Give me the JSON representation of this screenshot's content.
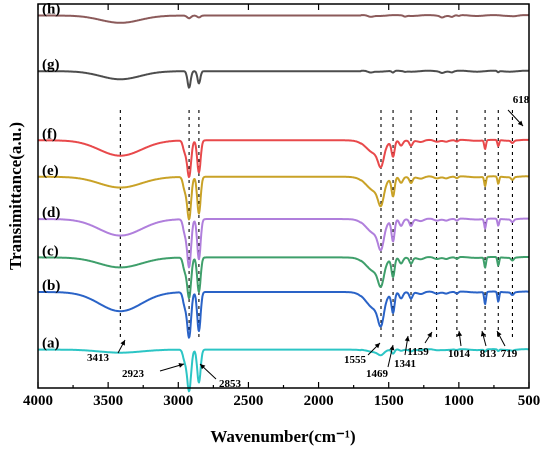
{
  "chart_data": {
    "type": "line",
    "xlabel": "Wavenumber(cm⁻¹)",
    "ylabel": "Transimittance(a.u.)",
    "xlim": [
      4000,
      500
    ],
    "x_reversed": true,
    "x_ticks": [
      "4000",
      "3500",
      "3000",
      "2500",
      "2000",
      "1500",
      "1000",
      "500"
    ],
    "y_ticks_shown": false,
    "grid": false,
    "series": [
      {
        "name": "(h)",
        "color": "#8b5a5a",
        "offset": 97.0,
        "depth": 4.2,
        "peaks": [
          [
            3413,
            1.9,
            140
          ],
          [
            2923,
            0.7,
            14
          ],
          [
            2853,
            0.5,
            12
          ],
          [
            1630,
            0.35,
            18
          ],
          [
            1384,
            0.25,
            10
          ],
          [
            1120,
            0.4,
            14
          ],
          [
            1050,
            0.35,
            12
          ],
          [
            1000,
            0.2,
            10
          ],
          [
            600,
            0.1,
            20
          ]
        ]
      },
      {
        "name": "(g)",
        "color": "#4d4d4d",
        "offset": 82.5,
        "depth": 4.8,
        "peaks": [
          [
            3413,
            2.1,
            140
          ],
          [
            2923,
            4.3,
            11
          ],
          [
            2853,
            3.2,
            10
          ],
          [
            1630,
            0.35,
            18
          ],
          [
            1470,
            0.45,
            9
          ],
          [
            1384,
            0.15,
            9
          ],
          [
            1120,
            0.35,
            14
          ],
          [
            1050,
            0.3,
            12
          ],
          [
            720,
            0.35,
            6
          ]
        ]
      },
      {
        "name": "(f)",
        "color": "#e8494b",
        "offset": 64.5,
        "depth": 9.5,
        "peaks": [
          [
            3413,
            4.0,
            150
          ],
          [
            2955,
            2.6,
            12
          ],
          [
            2923,
            9.5,
            14
          ],
          [
            2853,
            8.4,
            12
          ],
          [
            1600,
            3.3,
            60
          ],
          [
            1555,
            4.4,
            20
          ],
          [
            1469,
            4.1,
            11
          ],
          [
            1412,
            1.4,
            13
          ],
          [
            1341,
            1.3,
            11
          ],
          [
            1270,
            0.45,
            22
          ],
          [
            1159,
            0.35,
            18
          ],
          [
            1090,
            0.25,
            14
          ],
          [
            1014,
            0.4,
            10
          ],
          [
            813,
            2.3,
            6
          ],
          [
            719,
            1.6,
            6
          ],
          [
            618,
            0.6,
            9
          ]
        ]
      },
      {
        "name": "(e)",
        "color": "#c9a227",
        "offset": 55.0,
        "depth": 11.0,
        "peaks": [
          [
            3413,
            2.8,
            150
          ],
          [
            2955,
            3.0,
            12
          ],
          [
            2923,
            11.0,
            14
          ],
          [
            2853,
            9.6,
            12
          ],
          [
            1600,
            3.6,
            60
          ],
          [
            1555,
            4.8,
            20
          ],
          [
            1469,
            4.9,
            11
          ],
          [
            1412,
            1.6,
            13
          ],
          [
            1341,
            1.5,
            11
          ],
          [
            1270,
            0.5,
            22
          ],
          [
            1159,
            0.4,
            18
          ],
          [
            1090,
            0.3,
            14
          ],
          [
            1014,
            0.45,
            10
          ],
          [
            813,
            2.5,
            6
          ],
          [
            719,
            1.9,
            6
          ],
          [
            618,
            0.7,
            9
          ]
        ]
      },
      {
        "name": "(d)",
        "color": "#b07fdc",
        "offset": 44.0,
        "depth": 12.5,
        "peaks": [
          [
            3413,
            4.3,
            150
          ],
          [
            2955,
            3.2,
            12
          ],
          [
            2923,
            12.5,
            14
          ],
          [
            2853,
            10.5,
            12
          ],
          [
            1600,
            3.7,
            60
          ],
          [
            1555,
            5.2,
            20
          ],
          [
            1469,
            5.6,
            11
          ],
          [
            1412,
            1.8,
            13
          ],
          [
            1341,
            1.7,
            11
          ],
          [
            1270,
            0.55,
            22
          ],
          [
            1159,
            0.4,
            18
          ],
          [
            1090,
            0.3,
            14
          ],
          [
            1014,
            0.5,
            10
          ],
          [
            813,
            2.5,
            6
          ],
          [
            719,
            1.8,
            6
          ],
          [
            618,
            0.7,
            9
          ]
        ]
      },
      {
        "name": "(c)",
        "color": "#3f9f6b",
        "offset": 34.0,
        "depth": 10.5,
        "peaks": [
          [
            3413,
            2.6,
            150
          ],
          [
            2955,
            3.0,
            12
          ],
          [
            2923,
            10.5,
            14
          ],
          [
            2853,
            9.0,
            12
          ],
          [
            1600,
            3.6,
            60
          ],
          [
            1555,
            4.8,
            20
          ],
          [
            1469,
            4.9,
            11
          ],
          [
            1412,
            1.6,
            13
          ],
          [
            1341,
            1.5,
            11
          ],
          [
            1270,
            0.5,
            22
          ],
          [
            1159,
            0.4,
            18
          ],
          [
            1090,
            0.3,
            14
          ],
          [
            1014,
            0.45,
            10
          ],
          [
            813,
            2.7,
            6
          ],
          [
            719,
            2.2,
            6
          ],
          [
            618,
            0.7,
            9
          ]
        ]
      },
      {
        "name": "(b)",
        "color": "#2a63c7",
        "offset": 25.0,
        "depth": 11.8,
        "peaks": [
          [
            3413,
            5.0,
            150
          ],
          [
            2955,
            3.2,
            12
          ],
          [
            2923,
            11.8,
            14
          ],
          [
            2853,
            10.2,
            12
          ],
          [
            1600,
            4.3,
            60
          ],
          [
            1555,
            5.6,
            20
          ],
          [
            1469,
            5.2,
            11
          ],
          [
            1412,
            1.7,
            13
          ],
          [
            1341,
            1.6,
            11
          ],
          [
            1270,
            0.55,
            22
          ],
          [
            1159,
            0.4,
            18
          ],
          [
            1090,
            0.3,
            14
          ],
          [
            1014,
            0.5,
            10
          ],
          [
            813,
            3.2,
            6
          ],
          [
            719,
            2.6,
            6
          ],
          [
            618,
            0.7,
            9
          ]
        ]
      },
      {
        "name": "(a)",
        "color": "#2cc5c5",
        "offset": 10.0,
        "depth": 10.8,
        "peaks": [
          [
            3413,
            0.8,
            150
          ],
          [
            2955,
            2.6,
            12
          ],
          [
            2923,
            10.8,
            14
          ],
          [
            2853,
            8.6,
            12
          ],
          [
            1600,
            0.6,
            60
          ],
          [
            1555,
            0.9,
            20
          ],
          [
            1469,
            1.1,
            11
          ],
          [
            1412,
            0.35,
            13
          ],
          [
            1341,
            0.35,
            11
          ],
          [
            1270,
            0.15,
            22
          ],
          [
            1159,
            0.15,
            18
          ],
          [
            1014,
            0.2,
            10
          ],
          [
            813,
            0.5,
            6
          ],
          [
            719,
            0.45,
            6
          ],
          [
            618,
            0.2,
            9
          ]
        ]
      }
    ],
    "reference_lines": [
      3413,
      2923,
      2853,
      1555,
      1469,
      1341,
      1159,
      1014,
      813,
      719,
      618
    ],
    "annotations": [
      {
        "text": "3413",
        "x": 3413
      },
      {
        "text": "2923",
        "x": 2923
      },
      {
        "text": "2853",
        "x": 2853
      },
      {
        "text": "1555",
        "x": 1555
      },
      {
        "text": "1469",
        "x": 1469
      },
      {
        "text": "1341",
        "x": 1341
      },
      {
        "text": "1159",
        "x": 1159
      },
      {
        "text": "1014",
        "x": 1014
      },
      {
        "text": "813",
        "x": 813
      },
      {
        "text": "719",
        "x": 719
      },
      {
        "text": "618",
        "x": 618
      }
    ]
  }
}
